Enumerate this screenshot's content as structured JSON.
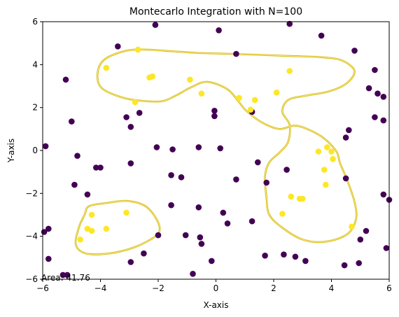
{
  "chart_data": {
    "type": "scatter",
    "title": "Montecarlo Integration with N=100",
    "xlabel": "X-axis",
    "ylabel": "Y-axis",
    "xlim": [
      -6,
      6
    ],
    "ylim": [
      -6,
      6
    ],
    "xticks": [
      -6,
      -4,
      -2,
      0,
      2,
      4,
      6
    ],
    "yticks": [
      -6,
      -4,
      -2,
      0,
      2,
      4,
      6
    ],
    "xtick_labels": [
      "−6",
      "−4",
      "−2",
      "0",
      "2",
      "4",
      "6"
    ],
    "ytick_labels": [
      "−6",
      "−4",
      "−2",
      "0",
      "2",
      "4",
      "6"
    ],
    "grid": false,
    "annotation": "Area: 41.76",
    "colors": {
      "inside": "#fde725",
      "outside": "#440154",
      "contour": "#d4b80e"
    },
    "points_inside": [
      [
        -2.7,
        4.7
      ],
      [
        -3.8,
        3.85
      ],
      [
        -2.3,
        3.4
      ],
      [
        -2.2,
        3.45
      ],
      [
        -0.9,
        3.3
      ],
      [
        -2.8,
        2.25
      ],
      [
        -0.5,
        2.65
      ],
      [
        0.8,
        2.45
      ],
      [
        1.2,
        1.9
      ],
      [
        1.35,
        2.35
      ],
      [
        2.1,
        2.7
      ],
      [
        2.55,
        3.7
      ],
      [
        3.55,
        -0.05
      ],
      [
        3.85,
        0.15
      ],
      [
        4.0,
        -0.05
      ],
      [
        4.05,
        -0.4
      ],
      [
        3.75,
        -0.9
      ],
      [
        3.8,
        -1.6
      ],
      [
        2.6,
        -2.15
      ],
      [
        2.9,
        -2.25
      ],
      [
        3.0,
        -2.25
      ],
      [
        2.3,
        -2.95
      ],
      [
        4.7,
        -3.55
      ],
      [
        -4.3,
        -3.0
      ],
      [
        -3.1,
        -2.9
      ],
      [
        -4.45,
        -3.65
      ],
      [
        -4.3,
        -3.75
      ],
      [
        -3.8,
        -3.65
      ],
      [
        -4.7,
        -4.15
      ]
    ],
    "points_outside": [
      [
        -2.1,
        5.85
      ],
      [
        0.1,
        5.6
      ],
      [
        2.55,
        5.9
      ],
      [
        3.65,
        5.35
      ],
      [
        -3.4,
        4.85
      ],
      [
        0.7,
        4.5
      ],
      [
        4.8,
        4.65
      ],
      [
        -5.2,
        3.3
      ],
      [
        5.5,
        3.75
      ],
      [
        5.3,
        2.9
      ],
      [
        5.6,
        2.65
      ],
      [
        5.8,
        2.5
      ],
      [
        -3.1,
        1.55
      ],
      [
        -2.65,
        1.75
      ],
      [
        -0.05,
        1.85
      ],
      [
        -0.05,
        1.6
      ],
      [
        1.25,
        1.8
      ],
      [
        5.5,
        1.55
      ],
      [
        -5.0,
        1.35
      ],
      [
        5.8,
        1.4
      ],
      [
        -2.95,
        1.1
      ],
      [
        4.6,
        0.95
      ],
      [
        4.5,
        0.6
      ],
      [
        -5.9,
        0.2
      ],
      [
        -2.05,
        0.15
      ],
      [
        -0.6,
        0.15
      ],
      [
        0.15,
        0.1
      ],
      [
        -1.5,
        0.05
      ],
      [
        -4.8,
        -0.25
      ],
      [
        -2.95,
        -0.6
      ],
      [
        1.45,
        -0.55
      ],
      [
        -4.15,
        -0.8
      ],
      [
        -4.0,
        -0.8
      ],
      [
        2.45,
        -0.9
      ],
      [
        -1.55,
        -1.15
      ],
      [
        -1.2,
        -1.25
      ],
      [
        0.7,
        -1.35
      ],
      [
        4.5,
        -1.3
      ],
      [
        -4.9,
        -1.6
      ],
      [
        1.75,
        -1.5
      ],
      [
        5.8,
        -2.05
      ],
      [
        -4.45,
        -2.05
      ],
      [
        6.0,
        -2.3
      ],
      [
        -1.55,
        -2.55
      ],
      [
        -0.6,
        -2.65
      ],
      [
        0.25,
        -2.9
      ],
      [
        0.4,
        -3.4
      ],
      [
        1.25,
        -3.3
      ],
      [
        -5.95,
        -3.8
      ],
      [
        -5.8,
        -3.65
      ],
      [
        5.2,
        -3.75
      ],
      [
        -2.0,
        -3.95
      ],
      [
        -1.05,
        -3.95
      ],
      [
        -0.55,
        -4.05
      ],
      [
        -0.5,
        -4.35
      ],
      [
        5.0,
        -4.15
      ],
      [
        5.9,
        -4.55
      ],
      [
        -2.5,
        -4.8
      ],
      [
        1.7,
        -4.9
      ],
      [
        2.35,
        -4.85
      ],
      [
        2.75,
        -4.95
      ],
      [
        -5.8,
        -5.05
      ],
      [
        -0.15,
        -5.15
      ],
      [
        -2.95,
        -5.2
      ],
      [
        3.1,
        -5.15
      ],
      [
        4.95,
        -5.25
      ],
      [
        4.45,
        -5.35
      ],
      [
        -5.15,
        -5.8
      ],
      [
        -0.8,
        -5.75
      ],
      [
        -5.3,
        -5.8
      ]
    ],
    "contours": [
      [
        [
          -1.8,
          4.65
        ],
        [
          -0.7,
          4.55
        ],
        [
          0.5,
          4.5
        ],
        [
          1.6,
          4.45
        ],
        [
          2.6,
          4.4
        ],
        [
          3.6,
          4.35
        ],
        [
          4.35,
          4.2
        ],
        [
          4.8,
          3.7
        ],
        [
          4.5,
          3.1
        ],
        [
          3.9,
          2.75
        ],
        [
          3.1,
          2.55
        ],
        [
          2.5,
          2.35
        ],
        [
          2.3,
          1.8
        ],
        [
          2.55,
          1.2
        ],
        [
          2.5,
          0.4
        ],
        [
          2.2,
          -0.1
        ],
        [
          1.85,
          -0.55
        ],
        [
          1.7,
          -1.2
        ],
        [
          1.75,
          -2.2
        ],
        [
          1.85,
          -3.0
        ],
        [
          2.3,
          -3.6
        ],
        [
          3.0,
          -4.15
        ],
        [
          3.8,
          -4.25
        ],
        [
          4.55,
          -3.9
        ],
        [
          4.85,
          -3.2
        ],
        [
          4.8,
          -2.4
        ],
        [
          4.55,
          -1.4
        ],
        [
          4.3,
          -0.6
        ],
        [
          4.15,
          0.0
        ],
        [
          3.6,
          0.7
        ],
        [
          2.8,
          1.15
        ],
        [
          2.2,
          1.0
        ],
        [
          1.6,
          1.3
        ],
        [
          1.05,
          1.85
        ],
        [
          0.8,
          2.25
        ],
        [
          0.4,
          2.85
        ],
        [
          -0.3,
          3.2
        ],
        [
          -0.85,
          2.95
        ],
        [
          -1.4,
          2.55
        ],
        [
          -1.85,
          2.3
        ],
        [
          -2.45,
          2.3
        ],
        [
          -3.2,
          2.45
        ],
        [
          -3.95,
          2.9
        ],
        [
          -4.1,
          3.6
        ],
        [
          -3.85,
          4.25
        ],
        [
          -3.1,
          4.65
        ],
        [
          -2.4,
          4.7
        ],
        [
          -1.8,
          4.65
        ]
      ],
      [
        [
          -4.4,
          -2.6
        ],
        [
          -3.8,
          -2.45
        ],
        [
          -3.1,
          -2.35
        ],
        [
          -2.5,
          -2.55
        ],
        [
          -2.15,
          -3.0
        ],
        [
          -1.95,
          -3.6
        ],
        [
          -2.1,
          -4.0
        ],
        [
          -2.8,
          -4.5
        ],
        [
          -3.7,
          -4.8
        ],
        [
          -4.5,
          -4.8
        ],
        [
          -4.85,
          -4.4
        ],
        [
          -4.75,
          -3.6
        ],
        [
          -4.55,
          -3.0
        ],
        [
          -4.4,
          -2.6
        ]
      ]
    ]
  }
}
